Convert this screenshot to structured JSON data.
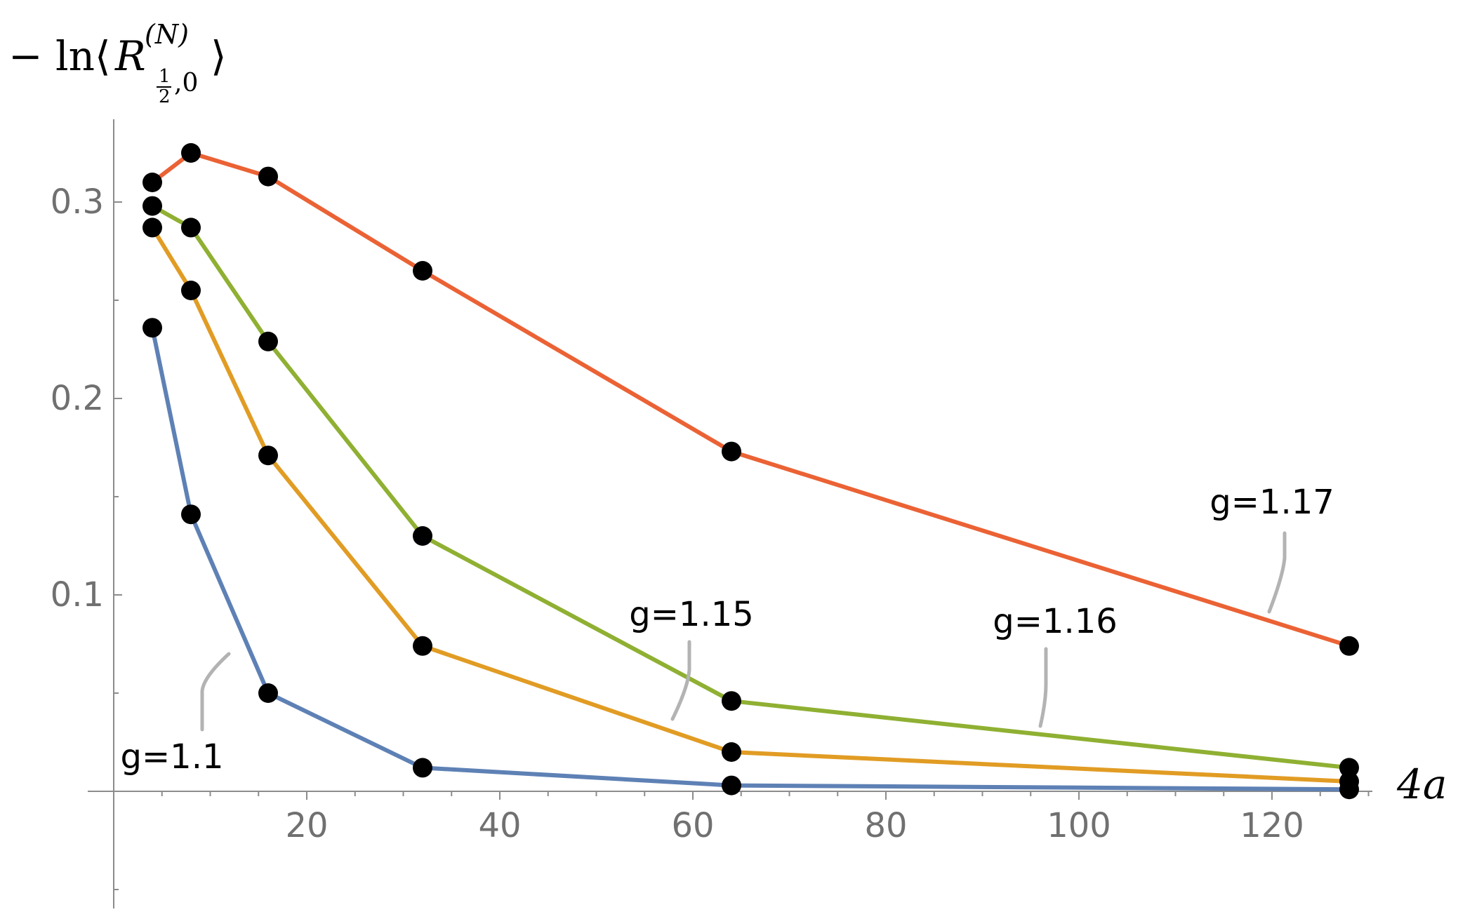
{
  "chart_data": {
    "type": "line",
    "xlabel": "4a",
    "ylabel": {
      "prefix": "− ln⟨",
      "symbol": "R",
      "superscript": "(N)",
      "subscript_frac_num": "1",
      "subscript_frac_den": "2",
      "subscript_rest": ",0",
      "suffix": "⟩"
    },
    "xlim": [
      0,
      130
    ],
    "ylim": [
      -0.06,
      0.34
    ],
    "x_ticks": [
      20,
      40,
      60,
      80,
      100,
      120
    ],
    "y_ticks": [
      0.1,
      0.2,
      0.3
    ],
    "x_tick_labels": [
      "20",
      "40",
      "60",
      "80",
      "100",
      "120"
    ],
    "y_tick_labels": [
      "0.1",
      "0.2",
      "0.3"
    ],
    "grid": false,
    "markers": "filled black circles",
    "x": [
      4,
      8,
      16,
      32,
      64,
      128
    ],
    "series": [
      {
        "name": "g=1.1",
        "color": "#5e81b5",
        "values": [
          0.236,
          0.141,
          0.05,
          0.012,
          0.003,
          0.001
        ]
      },
      {
        "name": "g=1.15",
        "color": "#e19c24",
        "values": [
          0.287,
          0.255,
          0.171,
          0.074,
          0.02,
          0.005
        ]
      },
      {
        "name": "g=1.16",
        "color": "#8fb032",
        "values": [
          0.298,
          0.287,
          0.229,
          0.13,
          0.046,
          0.012
        ]
      },
      {
        "name": "g=1.17",
        "color": "#eb6235",
        "values": [
          0.31,
          0.325,
          0.313,
          0.265,
          0.173,
          0.074
        ]
      }
    ]
  }
}
